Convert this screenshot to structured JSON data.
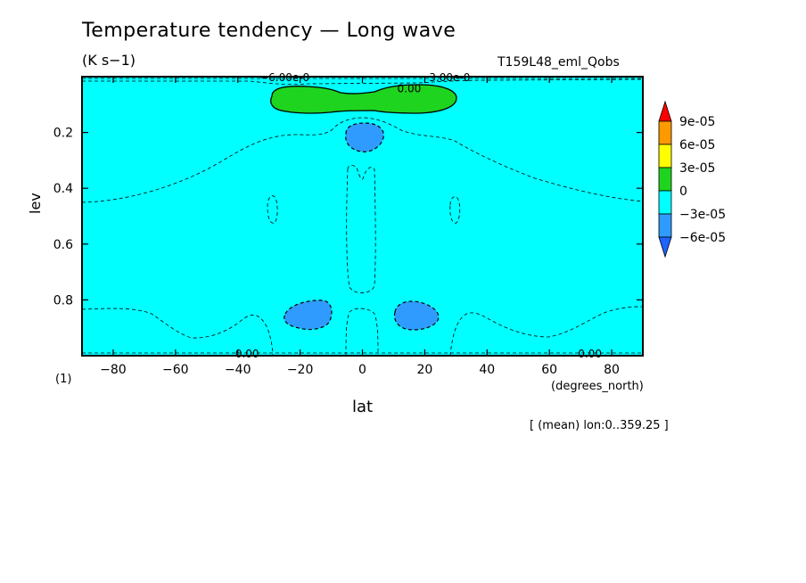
{
  "chart_data": {
    "type": "heatmap",
    "title": "Temperature tendency — Long wave",
    "units": "(K s−1)",
    "run_label": "T159L48_eml_Qobs",
    "xlabel": "lat",
    "xunit": "(degrees_north)",
    "ylabel": "lev",
    "fig_label": "(1)",
    "footer": "[ (mean) lon:0..359.25 ]",
    "xlim": [
      -90,
      90
    ],
    "ylim": [
      1.0,
      0.0
    ],
    "x_ticks": [
      "−80",
      "−60",
      "−40",
      "−20",
      "0",
      "20",
      "40",
      "60",
      "80"
    ],
    "x_tick_values": [
      -80,
      -60,
      -40,
      -20,
      0,
      20,
      40,
      60,
      80
    ],
    "y_ticks": [
      "0.2",
      "0.4",
      "0.6",
      "0.8"
    ],
    "y_tick_values": [
      0.2,
      0.4,
      0.6,
      0.8
    ],
    "background_level": "−3e-05 to 0",
    "contour_labels": [
      {
        "text": "−6.00e-0",
        "lat": -25,
        "lev": 0.0
      },
      {
        "text": "3.00e-0",
        "lat": 28,
        "lev": 0.0
      },
      {
        "text": "0.00",
        "lat": 15,
        "lev": 0.04
      },
      {
        "text": "0.00",
        "lat": -37,
        "lev": 0.99
      },
      {
        "text": "0.00",
        "lat": 73,
        "lev": 0.99
      }
    ],
    "regions": [
      {
        "level": "0 to 3e-05",
        "description": "positive tendency",
        "lat_range": [
          -29,
          30
        ],
        "lev_range": [
          0.04,
          0.13
        ]
      },
      {
        "level": "−6e-05 to −3e-05",
        "lat_range": [
          -6,
          7
        ],
        "lev_range": [
          0.17,
          0.27
        ]
      },
      {
        "level": "−6e-05 to −3e-05",
        "lat_range": [
          -25,
          -10
        ],
        "lev_range": [
          0.8,
          0.9
        ]
      },
      {
        "level": "−6e-05 to −3e-05",
        "lat_range": [
          10,
          25
        ],
        "lev_range": [
          0.8,
          0.9
        ]
      }
    ],
    "colorbar": {
      "labels": [
        "9e-05",
        "6e-05",
        "3e-05",
        "0",
        "−3e-05",
        "−6e-05"
      ],
      "colors": [
        "#ff0000",
        "#ff9900",
        "#ffff00",
        "#1fd41f",
        "#00ffff",
        "#2f9bff",
        "#1e64ff"
      ]
    }
  }
}
